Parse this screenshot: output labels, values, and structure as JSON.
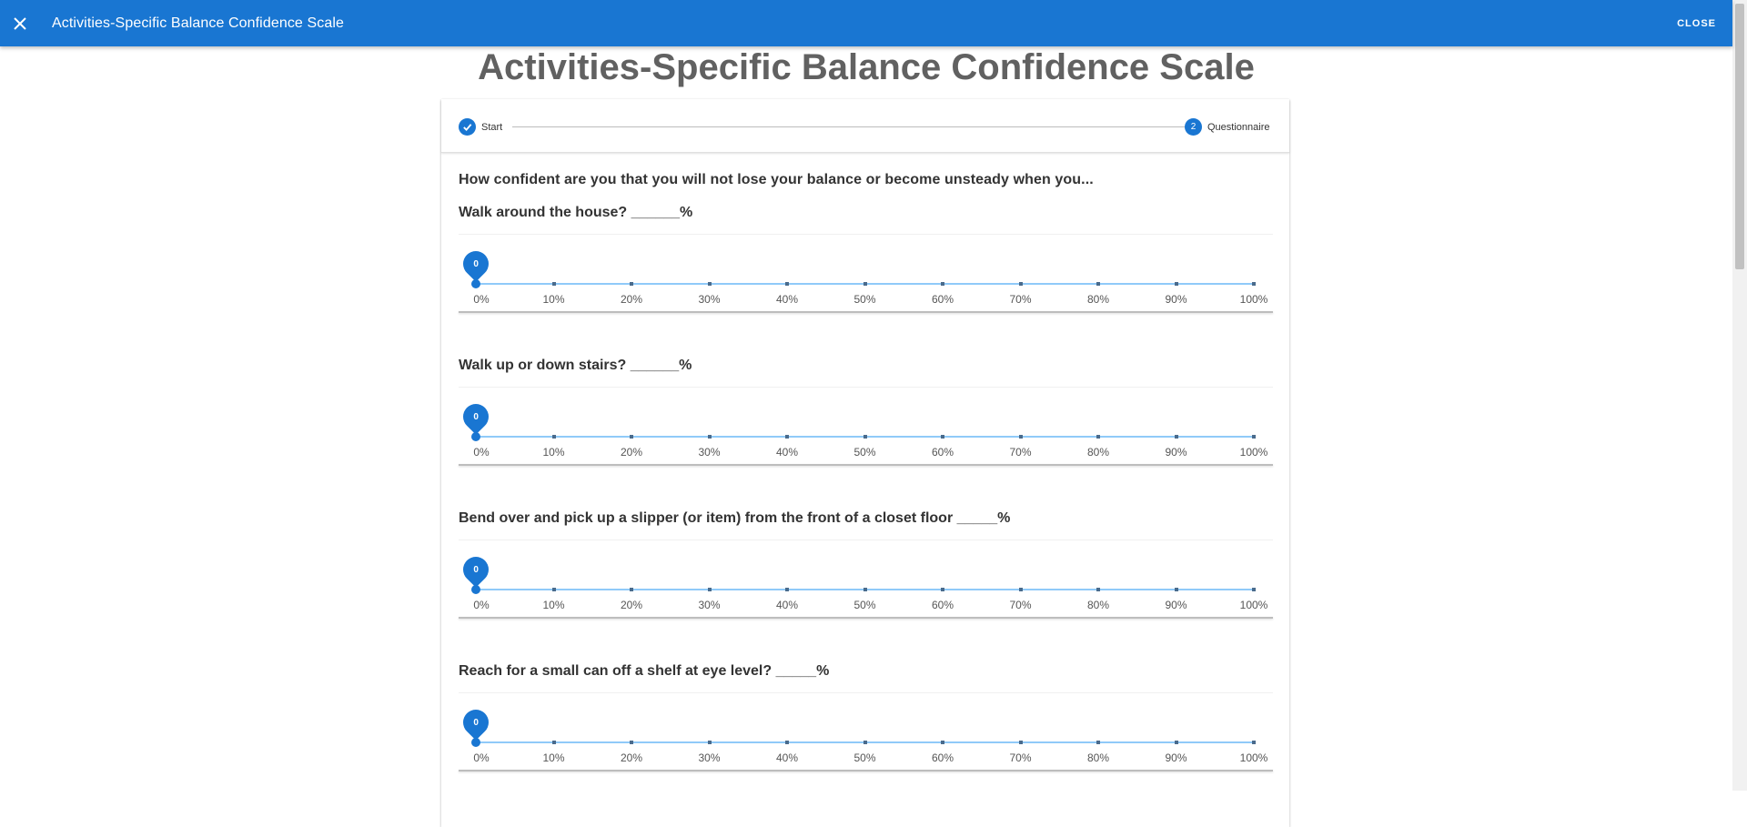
{
  "appbar": {
    "close_icon": "close-icon",
    "title": "Activities-Specific Balance Confidence Scale",
    "close_label": "CLOSE"
  },
  "page_title": "Activities-Specific Balance Confidence Scale",
  "stepper": {
    "steps": [
      {
        "label": "Start",
        "state": "completed",
        "icon": "check-icon"
      },
      {
        "label": "Questionnaire",
        "state": "active",
        "number": "2"
      }
    ]
  },
  "intro": "How confident are you that you will not lose your balance or become unsteady when you...",
  "slider_ticks": [
    "0%",
    "10%",
    "20%",
    "30%",
    "40%",
    "50%",
    "60%",
    "70%",
    "80%",
    "90%",
    "100%"
  ],
  "questions": [
    {
      "label": "Walk around the house? ______%",
      "value": "0"
    },
    {
      "label": "Walk up or down stairs? ______%",
      "value": "0"
    },
    {
      "label": "Bend over and pick up a slipper (or item) from the front of a closet floor _____%",
      "value": "0"
    },
    {
      "label": "Reach for a small can off a shelf at eye level? _____%",
      "value": "0"
    }
  ],
  "colors": {
    "primary": "#1976d2",
    "rail": "#90caf9",
    "title_gray": "#616161"
  }
}
